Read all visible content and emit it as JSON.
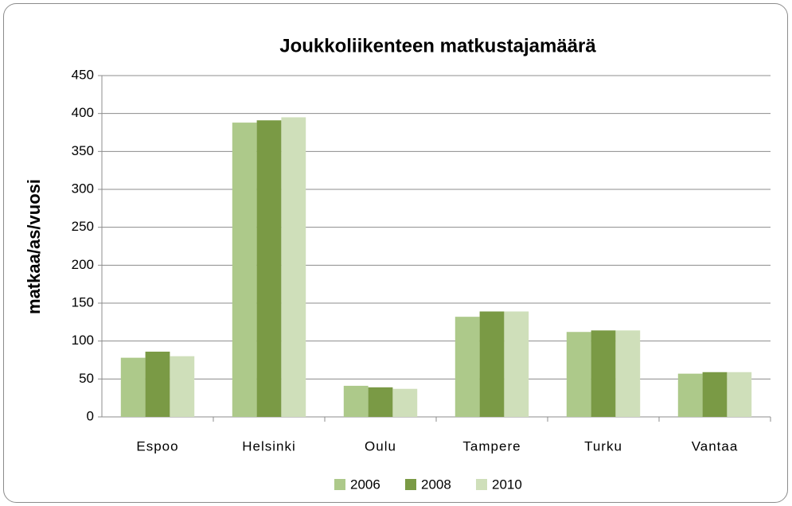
{
  "chart_data": {
    "type": "bar",
    "title": "Joukkoliikenteen matkustajamäärä",
    "ylabel": "matkaa/as/vuosi",
    "categories": [
      "Espoo",
      "Helsinki",
      "Oulu",
      "Tampere",
      "Turku",
      "Vantaa"
    ],
    "series": [
      {
        "name": "2006",
        "color": "#adc98a",
        "values": [
          78,
          388,
          41,
          132,
          112,
          57
        ]
      },
      {
        "name": "2008",
        "color": "#7a9a45",
        "values": [
          86,
          391,
          39,
          139,
          114,
          59
        ]
      },
      {
        "name": "2010",
        "color": "#cfdfba",
        "values": [
          80,
          395,
          37,
          139,
          114,
          59
        ]
      }
    ],
    "ylim": [
      0,
      450
    ],
    "yticks": [
      0,
      50,
      100,
      150,
      200,
      250,
      300,
      350,
      400,
      450
    ],
    "grid": true,
    "legend": "bottom"
  }
}
